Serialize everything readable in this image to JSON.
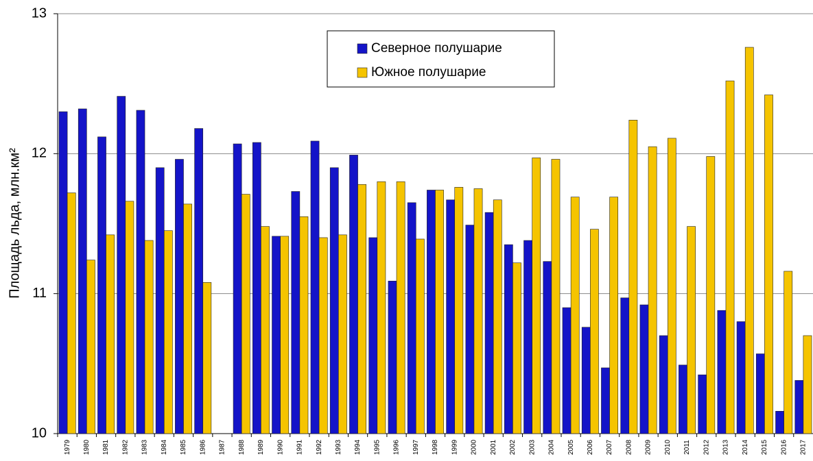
{
  "chart_data": {
    "type": "bar",
    "y_label": "Площадь льда, млн.км²",
    "categories": [
      "1979",
      "1980",
      "1981",
      "1982",
      "1983",
      "1984",
      "1985",
      "1986",
      "1987",
      "1988",
      "1989",
      "1990",
      "1991",
      "1992",
      "1993",
      "1994",
      "1995",
      "1996",
      "1997",
      "1998",
      "1999",
      "2000",
      "2001",
      "2002",
      "2003",
      "2004",
      "2005",
      "2006",
      "2007",
      "2008",
      "2009",
      "2010",
      "2011",
      "2012",
      "2013",
      "2014",
      "2015",
      "2016",
      "2017"
    ],
    "series": [
      {
        "name": "Северное полушарие",
        "color": "#1414c8",
        "values": [
          12.3,
          12.32,
          12.12,
          12.41,
          12.31,
          11.9,
          11.96,
          12.18,
          null,
          12.07,
          12.08,
          11.41,
          11.73,
          12.09,
          11.9,
          11.99,
          11.4,
          11.09,
          11.65,
          11.74,
          11.67,
          11.49,
          11.58,
          11.35,
          11.38,
          11.23,
          10.9,
          10.76,
          10.47,
          10.97,
          10.92,
          10.7,
          10.49,
          10.42,
          10.88,
          10.8,
          10.57,
          10.16,
          10.38
        ]
      },
      {
        "name": "Южное полушарие",
        "color": "#f5c400",
        "values": [
          11.72,
          11.24,
          11.42,
          11.66,
          11.38,
          11.45,
          11.64,
          11.08,
          null,
          11.71,
          11.48,
          11.41,
          11.55,
          11.4,
          11.42,
          11.78,
          11.8,
          11.8,
          11.39,
          11.74,
          11.76,
          11.75,
          11.67,
          11.22,
          11.97,
          11.96,
          11.69,
          11.46,
          11.69,
          12.24,
          12.05,
          12.11,
          11.48,
          11.98,
          12.52,
          12.76,
          12.42,
          11.16,
          10.7
        ]
      }
    ],
    "ylim": [
      10,
      13
    ],
    "yticks": [
      10,
      11,
      12,
      13
    ],
    "grid": true
  }
}
